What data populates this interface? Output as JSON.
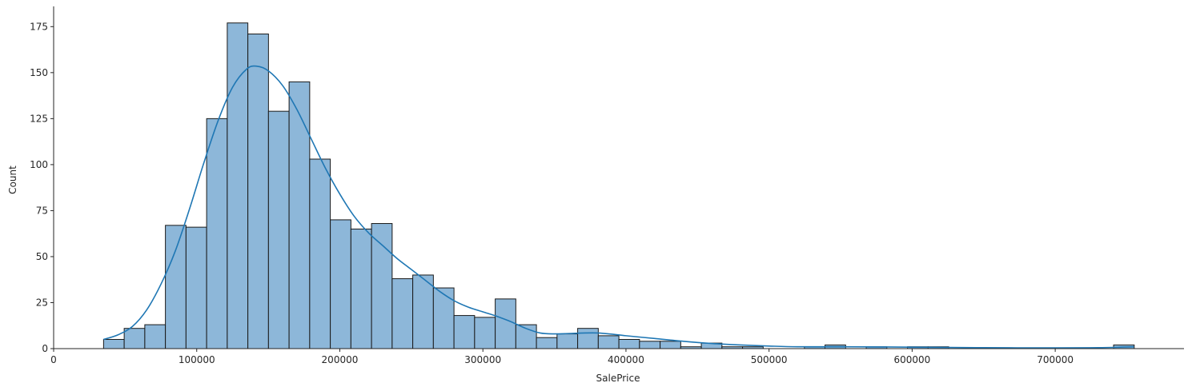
{
  "chart_data": {
    "type": "bar",
    "subtype": "histogram-with-kde",
    "title": "",
    "xlabel": "SalePrice",
    "ylabel": "Count",
    "xlim": [
      0,
      790000
    ],
    "ylim": [
      0,
      186
    ],
    "xticks": [
      0,
      100000,
      200000,
      300000,
      400000,
      500000,
      600000,
      700000
    ],
    "xtick_labels": [
      "0",
      "100000",
      "200000",
      "300000",
      "400000",
      "500000",
      "600000",
      "700000"
    ],
    "yticks": [
      0,
      25,
      50,
      75,
      100,
      125,
      150,
      175
    ],
    "ytick_labels": [
      "0",
      "25",
      "50",
      "75",
      "100",
      "125",
      "150",
      "175"
    ],
    "grid": false,
    "bin_start": 34900,
    "bin_width": 14406,
    "counts": [
      5,
      11,
      13,
      67,
      66,
      125,
      177,
      171,
      129,
      145,
      103,
      70,
      65,
      68,
      38,
      40,
      33,
      18,
      17,
      27,
      13,
      6,
      8,
      11,
      7,
      5,
      4,
      4,
      1,
      3,
      1,
      1,
      0,
      0,
      1,
      2,
      0,
      1,
      0,
      1,
      1,
      0,
      0,
      0,
      0,
      0,
      0,
      0,
      0,
      2
    ],
    "kde": {
      "x": [
        34900,
        45000,
        55000,
        65000,
        75000,
        85000,
        95000,
        105000,
        115000,
        125000,
        135000,
        142000,
        150000,
        160000,
        170000,
        180000,
        190000,
        200000,
        210000,
        220000,
        230000,
        240000,
        250000,
        260000,
        270000,
        280000,
        290000,
        300000,
        310000,
        320000,
        330000,
        340000,
        350000,
        360000,
        380000,
        400000,
        420000,
        440000,
        460000,
        480000,
        500000,
        520000,
        550000,
        600000,
        650000,
        700000,
        730000,
        755000
      ],
      "y": [
        5,
        7.5,
        12,
        21,
        35,
        53,
        76,
        101,
        124,
        142,
        152,
        153.5,
        151,
        143,
        130,
        114,
        98,
        84,
        72,
        63,
        56,
        49,
        43,
        37,
        31,
        26,
        22.5,
        20,
        17.5,
        14.5,
        11,
        8.5,
        8,
        8.2,
        8.5,
        7,
        5.5,
        4,
        2.8,
        2,
        1.4,
        1,
        1,
        0.8,
        0.5,
        0.4,
        0.5,
        1
      ]
    },
    "colors": {
      "bar_fill": "#8db7d9",
      "bar_edge": "#1a1a1a",
      "kde_line": "#1f77b4"
    }
  }
}
